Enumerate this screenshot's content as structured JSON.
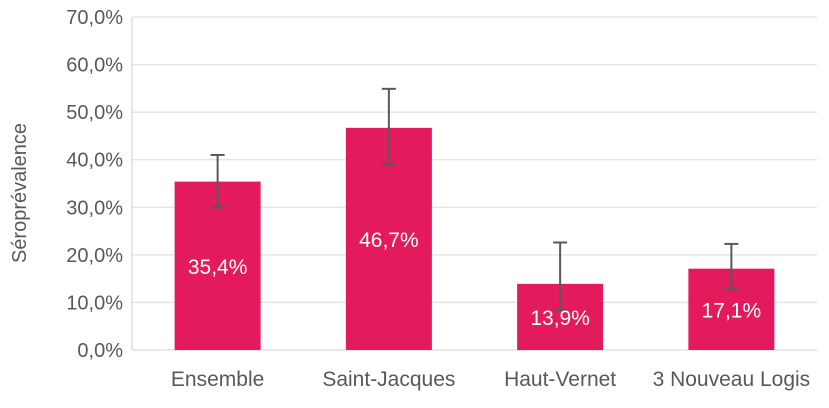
{
  "chart_data": {
    "type": "bar",
    "title": "",
    "xlabel": "",
    "ylabel": "Séroprévalence",
    "categories": [
      "Ensemble",
      "Saint-Jacques",
      "Haut-Vernet",
      "3 Nouveau Logis"
    ],
    "values": [
      35.4,
      46.7,
      13.9,
      17.1
    ],
    "value_labels": [
      "35,4%",
      "46,7%",
      "13,9%",
      "17,1%"
    ],
    "error_bars": [
      {
        "low": 30.0,
        "high": 41.0
      },
      {
        "low": 39.0,
        "high": 54.9
      },
      {
        "low": 8.4,
        "high": 22.6
      },
      {
        "low": 13.0,
        "high": 22.3
      }
    ],
    "ylim": [
      0,
      70
    ],
    "ytick_step": 10,
    "ytick_labels": [
      "0,0%",
      "10,0%",
      "20,0%",
      "30,0%",
      "40,0%",
      "50,0%",
      "60,0%",
      "70,0%"
    ],
    "grid": true,
    "legend": "none",
    "colors": {
      "bar": "#E31B5D",
      "grid": "#E2E2E2",
      "axis": "#D9D9D9",
      "error_bar": "#595959",
      "tick_text": "#595959",
      "category_text": "#595959",
      "value_label_text": "#FFFFFF"
    }
  }
}
